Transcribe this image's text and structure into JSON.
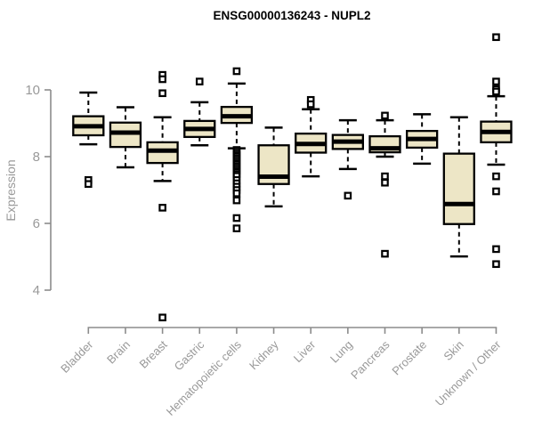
{
  "chart_data": {
    "type": "boxplot",
    "title": "ENSG00000136243 - NUPL2",
    "ylabel": "Expression",
    "xlabel": "",
    "yticks": [
      4,
      6,
      8,
      10
    ],
    "ylim": [
      3.0,
      11.8
    ],
    "grid": "off",
    "legend": "none",
    "categories": [
      "Bladder",
      "Brain",
      "Breast",
      "Gastric",
      "Hematopoietic cells",
      "Kidney",
      "Liver",
      "Lung",
      "Pancreas",
      "Prostate",
      "Skin",
      "Unknown / Other"
    ],
    "series": [
      {
        "category": "Bladder",
        "whisker_low": 8.37,
        "q1": 8.64,
        "median": 8.91,
        "q3": 9.21,
        "whisker_high": 9.92,
        "outliers": [
          7.3,
          7.18
        ]
      },
      {
        "category": "Brain",
        "whisker_low": 7.68,
        "q1": 8.29,
        "median": 8.72,
        "q3": 9.02,
        "whisker_high": 9.48,
        "outliers": []
      },
      {
        "category": "Breast",
        "whisker_low": 7.27,
        "q1": 7.81,
        "median": 8.18,
        "q3": 8.43,
        "whisker_high": 9.18,
        "outliers": [
          10.45,
          10.32,
          9.9,
          6.47,
          3.18
        ]
      },
      {
        "category": "Gastric",
        "whisker_low": 8.34,
        "q1": 8.59,
        "median": 8.83,
        "q3": 9.07,
        "whisker_high": 9.63,
        "outliers": [
          10.25
        ]
      },
      {
        "category": "Hematopoietic cells",
        "whisker_low": 8.25,
        "q1": 9.01,
        "median": 9.21,
        "q3": 9.49,
        "whisker_high": 10.19,
        "outliers": [
          10.56,
          8.2,
          8.14,
          8.08,
          8.02,
          7.96,
          7.9,
          7.84,
          7.78,
          7.72,
          7.66,
          7.6,
          7.54,
          7.48,
          7.42,
          7.3,
          7.2,
          7.1,
          7.0,
          6.9,
          6.69,
          6.16,
          5.85
        ]
      },
      {
        "category": "Kidney",
        "whisker_low": 6.51,
        "q1": 7.18,
        "median": 7.4,
        "q3": 8.34,
        "whisker_high": 8.87,
        "outliers": []
      },
      {
        "category": "Liver",
        "whisker_low": 7.41,
        "q1": 8.12,
        "median": 8.38,
        "q3": 8.69,
        "whisker_high": 9.42,
        "outliers": [
          9.7,
          9.57
        ]
      },
      {
        "category": "Lung",
        "whisker_low": 7.63,
        "q1": 8.23,
        "median": 8.45,
        "q3": 8.65,
        "whisker_high": 9.09,
        "outliers": [
          6.83
        ]
      },
      {
        "category": "Pancreas",
        "whisker_low": 8.0,
        "q1": 8.13,
        "median": 8.25,
        "q3": 8.61,
        "whisker_high": 9.09,
        "outliers": [
          9.23,
          7.41,
          7.22,
          5.09
        ]
      },
      {
        "category": "Prostate",
        "whisker_low": 7.79,
        "q1": 8.27,
        "median": 8.53,
        "q3": 8.77,
        "whisker_high": 9.27,
        "outliers": []
      },
      {
        "category": "Skin",
        "whisker_low": 5.01,
        "q1": 5.98,
        "median": 6.58,
        "q3": 8.09,
        "whisker_high": 9.18,
        "outliers": []
      },
      {
        "category": "Unknown / Other",
        "whisker_low": 7.76,
        "q1": 8.43,
        "median": 8.74,
        "q3": 9.05,
        "whisker_high": 9.81,
        "outliers": [
          11.58,
          10.25,
          10.02,
          9.95,
          7.41,
          6.96,
          5.23,
          4.78
        ]
      }
    ],
    "colors": {
      "box_fill": "#ede6c6",
      "box_stroke": "#000000",
      "median": "#000000",
      "axis": "#8c8c8c",
      "tick_label": "#999999",
      "title": "#000000"
    }
  }
}
